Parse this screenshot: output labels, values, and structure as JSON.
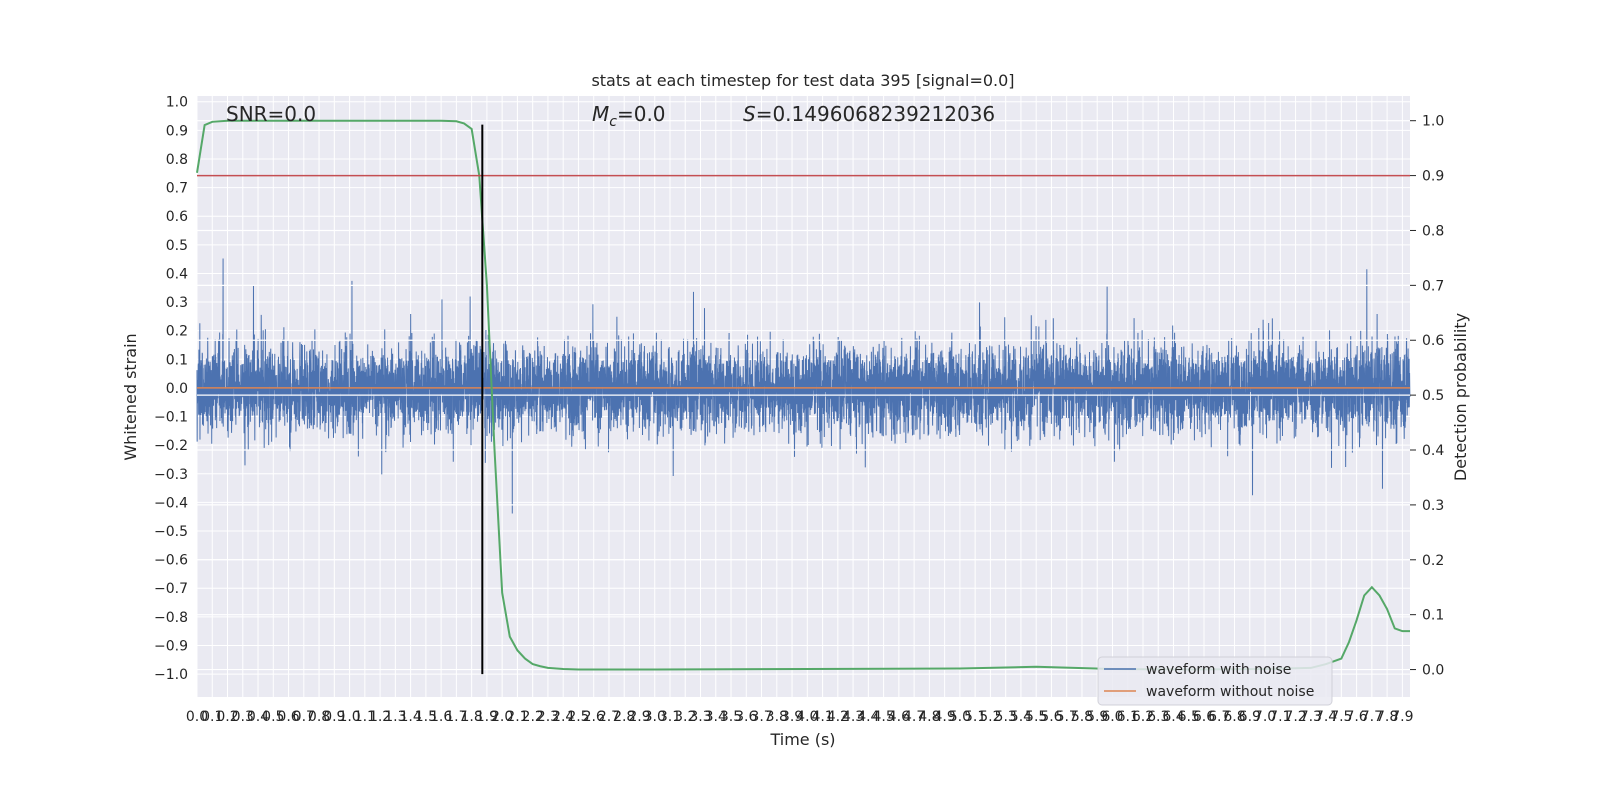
{
  "chart_data": {
    "type": "line",
    "title": "stats at each timestep for test data 395 [signal=0.0]",
    "xlabel": "Time (s)",
    "ylabel_left": "Whitened strain",
    "ylabel_right": "Detection probability",
    "xlim": [
      0.0,
      7.95
    ],
    "ylim_left": [
      -1.08,
      1.02
    ],
    "ylim_right": [
      -0.05,
      1.045
    ],
    "grid": true,
    "x_ticks": [
      "0.0",
      "0.1",
      "0.2",
      "0.3",
      "0.4",
      "0.5",
      "0.6",
      "0.7",
      "0.8",
      "0.9",
      "1.0",
      "1.1",
      "1.2",
      "1.3",
      "1.4",
      "1.5",
      "1.6",
      "1.7",
      "1.8",
      "1.9",
      "2.0",
      "2.1",
      "2.2",
      "2.3",
      "2.4",
      "2.5",
      "2.6",
      "2.7",
      "2.8",
      "2.9",
      "3.0",
      "3.1",
      "3.2",
      "3.3",
      "3.4",
      "3.5",
      "3.6",
      "3.7",
      "3.8",
      "3.9",
      "4.0",
      "4.1",
      "4.2",
      "4.3",
      "4.4",
      "4.5",
      "4.6",
      "4.7",
      "4.8",
      "4.9",
      "5.0",
      "5.1",
      "5.2",
      "5.3",
      "5.4",
      "5.5",
      "5.6",
      "5.7",
      "5.8",
      "5.9",
      "6.0",
      "6.1",
      "6.2",
      "6.3",
      "6.4",
      "6.5",
      "6.6",
      "6.7",
      "6.8",
      "6.9",
      "7.0",
      "7.1",
      "7.2",
      "7.3",
      "7.4",
      "7.5",
      "7.6",
      "7.7",
      "7.8",
      "7.9"
    ],
    "y_ticks_left": [
      "1.0",
      "0.9",
      "0.8",
      "0.7",
      "0.6",
      "0.5",
      "0.4",
      "0.3",
      "0.2",
      "0.1",
      "0.0",
      "−0.1",
      "−0.2",
      "−0.3",
      "−0.4",
      "−0.5",
      "−0.6",
      "−0.7",
      "−0.8",
      "−0.9",
      "−1.0"
    ],
    "y_ticks_left_values": [
      1.0,
      0.9,
      0.8,
      0.7,
      0.6,
      0.5,
      0.4,
      0.3,
      0.2,
      0.1,
      0.0,
      -0.1,
      -0.2,
      -0.3,
      -0.4,
      -0.5,
      -0.6,
      -0.7,
      -0.8,
      -0.9,
      -1.0
    ],
    "y_ticks_right": [
      "1.0",
      "0.9",
      "0.8",
      "0.7",
      "0.6",
      "0.5",
      "0.4",
      "0.3",
      "0.2",
      "0.1",
      "0.0"
    ],
    "y_ticks_right_values": [
      1.0,
      0.9,
      0.8,
      0.7,
      0.6,
      0.5,
      0.4,
      0.3,
      0.2,
      0.1,
      0.0
    ],
    "annotations": {
      "snr": "SNR=0.0",
      "mc_symbol": "M",
      "mc_subscript": "c",
      "mc_value": "=0.0",
      "s_symbol": "S",
      "s_value": "=0.1496068239212036"
    },
    "series": [
      {
        "name": "waveform with noise",
        "axis": "left",
        "color": "#4c72b0",
        "kind": "noise",
        "sample_rate": 1024,
        "duration": 7.95,
        "envelope": [
          -0.86,
          0.89
        ]
      },
      {
        "name": "waveform without noise",
        "axis": "left",
        "color": "#dd8452",
        "x": [
          0.0,
          7.95
        ],
        "y": [
          0.0,
          0.0
        ]
      },
      {
        "axis": "right",
        "color": "#55a868",
        "x": [
          0.0,
          0.05,
          0.1,
          0.2,
          0.5,
          1.0,
          1.5,
          1.6,
          1.7,
          1.75,
          1.8,
          1.85,
          1.9,
          1.95,
          2.0,
          2.05,
          2.1,
          2.15,
          2.2,
          2.25,
          2.3,
          2.4,
          2.5,
          3.0,
          4.0,
          5.0,
          5.5,
          6.0,
          6.5,
          7.0,
          7.3,
          7.4,
          7.5,
          7.55,
          7.6,
          7.65,
          7.7,
          7.75,
          7.8,
          7.85,
          7.9,
          7.95
        ],
        "y": [
          0.905,
          0.992,
          0.998,
          1.0,
          1.0,
          1.0,
          1.0,
          1.0,
          0.999,
          0.995,
          0.985,
          0.9,
          0.7,
          0.4,
          0.14,
          0.06,
          0.035,
          0.02,
          0.01,
          0.006,
          0.003,
          0.001,
          0.0,
          0.0,
          0.001,
          0.002,
          0.005,
          0.001,
          0.0,
          0.001,
          0.003,
          0.01,
          0.02,
          0.05,
          0.09,
          0.135,
          0.15,
          0.135,
          0.11,
          0.075,
          0.07,
          0.07
        ]
      },
      {
        "axis": "right",
        "color": "#c44e52",
        "x": [
          0.0,
          7.95
        ],
        "y": [
          0.9,
          0.9
        ]
      },
      {
        "axis": "vline",
        "color": "#000000",
        "x": [
          1.87
        ],
        "ymin_left": -1.0,
        "ymax_left": 0.92
      }
    ],
    "legend": {
      "placement": "lower-right",
      "entries": [
        "waveform with noise",
        "waveform without noise"
      ]
    }
  }
}
